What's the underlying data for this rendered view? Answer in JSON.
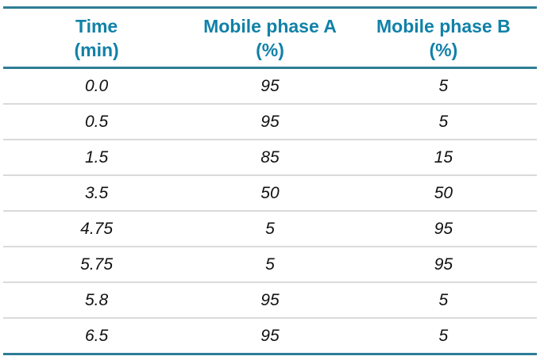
{
  "colors": {
    "accent_border": "#2E7D95",
    "header_text": "#1181A8",
    "row_divider": "#DADADA",
    "data_text": "#111111"
  },
  "table": {
    "columns": [
      {
        "line1": "Time",
        "line2": "(min)"
      },
      {
        "line1": "Mobile phase A",
        "line2": "(%)"
      },
      {
        "line1": "Mobile phase B",
        "line2": "(%)"
      }
    ],
    "rows": [
      [
        "0.0",
        "95",
        "5"
      ],
      [
        "0.5",
        "95",
        "5"
      ],
      [
        "1.5",
        "85",
        "15"
      ],
      [
        "3.5",
        "50",
        "50"
      ],
      [
        "4.75",
        "5",
        "95"
      ],
      [
        "5.75",
        "5",
        "95"
      ],
      [
        "5.8",
        "95",
        "5"
      ],
      [
        "6.5",
        "95",
        "5"
      ]
    ]
  },
  "chart_data": {
    "type": "table",
    "title": "",
    "columns": [
      "Time (min)",
      "Mobile phase A (%)",
      "Mobile phase B (%)"
    ],
    "rows": [
      [
        0.0,
        95,
        5
      ],
      [
        0.5,
        95,
        5
      ],
      [
        1.5,
        85,
        15
      ],
      [
        3.5,
        50,
        50
      ],
      [
        4.75,
        5,
        95
      ],
      [
        5.75,
        5,
        95
      ],
      [
        5.8,
        95,
        5
      ],
      [
        6.5,
        95,
        5
      ]
    ]
  }
}
